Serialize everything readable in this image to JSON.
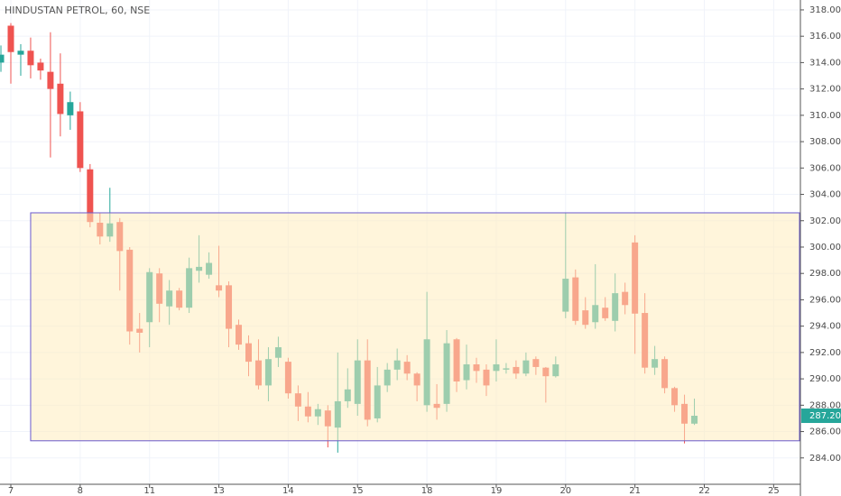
{
  "chart_data": {
    "type": "candlestick",
    "title": "HINDUSTAN PETROL, 60, NSE",
    "categories": [
      null,
      "7",
      null,
      null,
      null,
      null,
      null,
      null,
      "8",
      null,
      null,
      null,
      null,
      null,
      null,
      "11",
      null,
      null,
      null,
      null,
      null,
      null,
      "13",
      null,
      null,
      null,
      null,
      null,
      null,
      "14",
      null,
      null,
      null,
      null,
      null,
      null,
      "15",
      null,
      null,
      null,
      null,
      null,
      null,
      "18",
      null,
      null,
      null,
      null,
      null,
      null,
      "19",
      null,
      null,
      null,
      null,
      null,
      null,
      "20",
      null,
      null,
      null,
      null,
      null,
      null,
      "21",
      null,
      null,
      null,
      null,
      null,
      null,
      "22",
      null,
      null,
      null,
      null,
      null,
      null,
      "25",
      null
    ],
    "open": [
      314.0,
      316.8,
      314.6,
      314.9,
      314.0,
      313.3,
      312.4,
      310.0,
      310.3,
      305.9,
      301.85,
      300.8,
      301.9,
      299.8,
      293.8,
      294.3,
      298.0,
      295.5,
      296.7,
      295.4,
      298.2,
      297.9,
      297.1,
      297.1,
      294.1,
      292.7,
      291.4,
      289.5,
      291.6,
      291.3,
      288.9,
      287.9,
      287.15,
      287.6,
      286.3,
      288.3,
      288.1,
      291.4,
      287.0,
      289.5,
      290.7,
      291.3,
      290.4,
      288.0,
      288.1,
      288.1,
      293.0,
      289.9,
      291.1,
      290.7,
      290.6,
      290.7,
      290.9,
      290.4,
      291.5,
      290.85,
      290.2,
      295.1,
      297.7,
      295.2,
      294.3,
      295.4,
      294.4,
      296.6,
      300.35,
      295.0,
      290.85,
      291.5,
      289.3,
      288.1,
      286.6,
      null,
      null,
      null,
      null,
      null,
      null,
      null,
      null,
      null
    ],
    "high": [
      315.3,
      317.0,
      315.4,
      315.9,
      314.3,
      316.3,
      314.7,
      311.8,
      311.0,
      306.3,
      302.6,
      304.5,
      302.2,
      300.0,
      295.0,
      298.4,
      298.4,
      297.5,
      296.9,
      299.2,
      300.9,
      299.6,
      300.1,
      297.4,
      294.5,
      293.3,
      293.0,
      292.4,
      293.2,
      291.6,
      289.5,
      289.0,
      288.1,
      288.0,
      292.0,
      290.8,
      293.0,
      293.0,
      290.9,
      291.2,
      292.3,
      291.8,
      290.5,
      296.6,
      289.6,
      293.7,
      293.1,
      292.6,
      291.6,
      291.1,
      293.0,
      291.2,
      291.4,
      292.0,
      291.7,
      290.9,
      291.7,
      302.6,
      298.3,
      296.2,
      298.7,
      296.2,
      298.0,
      297.3,
      300.9,
      296.5,
      292.5,
      291.7,
      289.4,
      288.8,
      288.5,
      null,
      null,
      null,
      null,
      null,
      null,
      null,
      null,
      null
    ],
    "low": [
      313.3,
      312.4,
      313.0,
      312.8,
      312.7,
      306.8,
      308.4,
      308.9,
      305.7,
      301.5,
      300.2,
      300.4,
      296.7,
      292.6,
      292.0,
      292.4,
      294.3,
      294.1,
      295.2,
      295.0,
      297.3,
      297.6,
      296.2,
      292.4,
      292.2,
      290.2,
      289.2,
      288.3,
      290.9,
      288.5,
      286.8,
      286.7,
      286.5,
      284.8,
      284.4,
      287.8,
      287.2,
      286.4,
      286.7,
      289.0,
      289.9,
      289.9,
      288.3,
      287.5,
      286.9,
      287.5,
      289.0,
      289.2,
      289.7,
      288.7,
      289.8,
      290.4,
      290.0,
      290.2,
      290.3,
      288.2,
      290.1,
      294.6,
      294.1,
      293.8,
      293.8,
      294.4,
      293.6,
      294.9,
      291.9,
      290.4,
      290.3,
      288.9,
      287.5,
      285.1,
      286.5,
      null,
      null,
      null,
      null,
      null,
      null,
      null,
      null,
      null
    ],
    "close": [
      314.6,
      314.8,
      314.9,
      313.8,
      313.4,
      312.0,
      310.1,
      311.0,
      306.0,
      301.9,
      300.8,
      301.8,
      299.7,
      293.6,
      293.5,
      298.1,
      295.7,
      296.7,
      295.4,
      298.4,
      298.5,
      298.8,
      296.7,
      293.8,
      292.6,
      291.3,
      289.5,
      291.5,
      292.4,
      288.9,
      287.9,
      287.15,
      287.7,
      286.4,
      288.3,
      289.2,
      291.4,
      286.9,
      289.5,
      290.7,
      291.4,
      290.4,
      289.5,
      293.0,
      287.8,
      292.7,
      289.8,
      291.1,
      290.6,
      289.5,
      291.1,
      290.8,
      290.4,
      291.4,
      290.9,
      290.2,
      291.1,
      297.6,
      294.4,
      294.1,
      295.6,
      294.6,
      296.5,
      295.6,
      294.95,
      290.85,
      291.5,
      289.3,
      288.0,
      286.6,
      287.2,
      null,
      null,
      null,
      null,
      null,
      null,
      null,
      null,
      null
    ],
    "up_color": "#26a69a",
    "down_color": "#ef5350",
    "ylim": [
      282.0,
      318.75
    ],
    "yticks": [
      {
        "value": 284,
        "label": "284.00"
      },
      {
        "value": 286,
        "label": "286.00"
      },
      {
        "value": 288,
        "label": "288.00"
      },
      {
        "value": 290,
        "label": "290.00"
      },
      {
        "value": 292,
        "label": "292.00"
      },
      {
        "value": 294,
        "label": "294.00"
      },
      {
        "value": 296,
        "label": "296.00"
      },
      {
        "value": 298,
        "label": "298.00"
      },
      {
        "value": 300,
        "label": "300.00"
      },
      {
        "value": 302,
        "label": "302.00"
      },
      {
        "value": 304,
        "label": "304.00"
      },
      {
        "value": 306,
        "label": "306.00"
      },
      {
        "value": 308,
        "label": "308.00"
      },
      {
        "value": 310,
        "label": "310.00"
      },
      {
        "value": 312,
        "label": "312.00"
      },
      {
        "value": 314,
        "label": "314.00"
      },
      {
        "value": 316,
        "label": "316.00"
      },
      {
        "value": 318,
        "label": "318.00"
      }
    ],
    "grid": true,
    "zone": {
      "x_start": 3,
      "y": [
        285.3,
        302.6
      ],
      "color": "#6a5acd"
    },
    "last_price": {
      "value": 287.2,
      "label": "287.20"
    }
  }
}
